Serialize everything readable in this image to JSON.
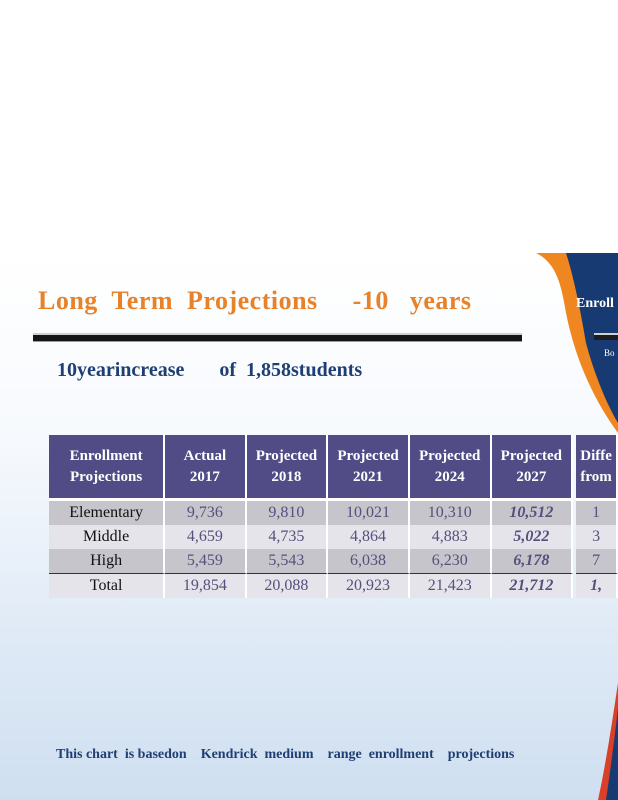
{
  "slide": {
    "title": "Long  Term  Projections     -10   years",
    "subtitle": "10yearincrease       of  1,858students",
    "side_title": "Enroll",
    "side_subtitle": "Bo",
    "footnote": "This chart  is basedon    Kendrick  medium    range  enrollment    projections"
  },
  "table": {
    "headers": [
      "Enrollment\nProjections",
      "Actual\n2017",
      "Projected\n2018",
      "Projected\n2021",
      "Projected\n2024",
      "Projected\n2027",
      "Diffe\nfrom"
    ],
    "rows": [
      {
        "label": "Elementary",
        "values": [
          "9,736",
          "9,810",
          "10,021",
          "10,310",
          "10,512"
        ],
        "diff": "1"
      },
      {
        "label": "Middle",
        "values": [
          "4,659",
          "4,735",
          "4,864",
          "4,883",
          "5,022"
        ],
        "diff": "3"
      },
      {
        "label": "High",
        "values": [
          "5,459",
          "5,543",
          "6,038",
          "6,230",
          "6,178"
        ],
        "diff": "7"
      },
      {
        "label": "Total",
        "values": [
          "19,854",
          "20,088",
          "20,923",
          "21,423",
          "21,712"
        ],
        "diff": "1,"
      }
    ]
  },
  "colors": {
    "title": "#e8822a",
    "subtitle": "#1e3f73",
    "header_bg": "#514c85",
    "swoosh_orange": "#f0861f",
    "swoosh_navy": "#173a73",
    "swoosh_red": "#d8402a"
  }
}
